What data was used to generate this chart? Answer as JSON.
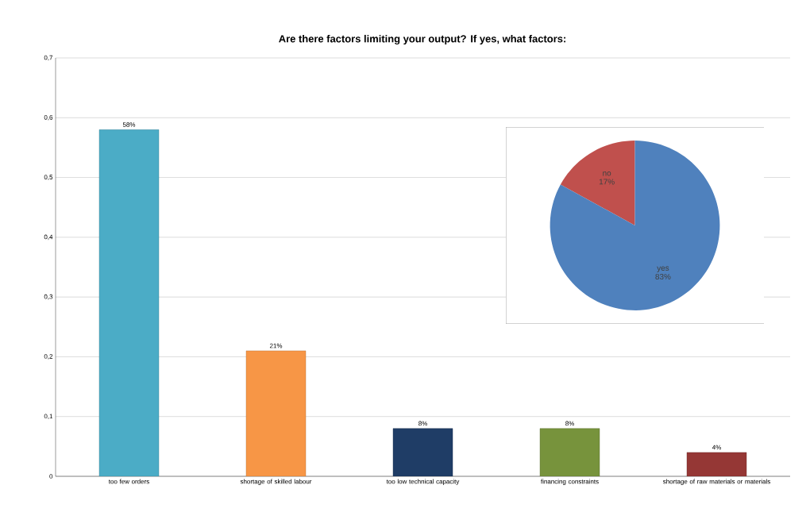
{
  "chart_data": [
    {
      "type": "bar",
      "title": "Are there factors limiting your output? If yes, what factors:",
      "categories": [
        "too few orders",
        "shortage of skilled labour",
        "too low technical capacity",
        "financing constraints",
        "shortage of raw materials or materials"
      ],
      "values": [
        0.58,
        0.21,
        0.08,
        0.08,
        0.04
      ],
      "value_labels": [
        "58%",
        "21%",
        "8%",
        "8%",
        "4%"
      ],
      "colors": [
        "#4bacc6",
        "#f79646",
        "#1f3d66",
        "#77933c",
        "#953735"
      ],
      "ylim": [
        0,
        0.7
      ],
      "yticks": [
        0,
        {
          "value": 0.1,
          "label": "0,1"
        },
        {
          "value": 0.2,
          "label": "0,2"
        },
        {
          "value": 0.3,
          "label": "0,3"
        },
        {
          "value": 0.4,
          "label": "0,4"
        },
        {
          "value": 0.5,
          "label": "0,5"
        },
        {
          "value": 0.6,
          "label": "0,6"
        },
        {
          "value": 0.7,
          "label": "0,7"
        }
      ],
      "grid": "y"
    },
    {
      "type": "pie",
      "categories": [
        "no",
        "yes"
      ],
      "values": [
        17,
        83
      ],
      "value_labels": [
        "17%",
        "83%"
      ],
      "colors": [
        "#c0504d",
        "#4f81bd"
      ]
    }
  ]
}
